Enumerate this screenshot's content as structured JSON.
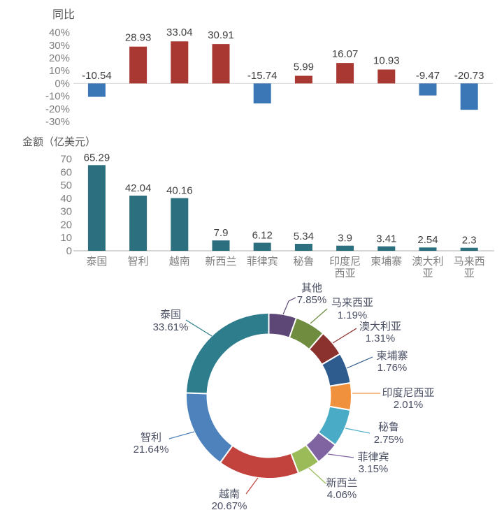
{
  "chart_data": [
    {
      "type": "bar",
      "title": "同比",
      "categories": [
        "泰国",
        "智利",
        "越南",
        "新西兰",
        "菲律宾",
        "秘鲁",
        "印度尼西亚",
        "柬埔寨",
        "澳大利亚",
        "马来西亚"
      ],
      "values": [
        -10.54,
        28.93,
        33.04,
        30.91,
        -15.74,
        5.99,
        16.07,
        10.93,
        -9.47,
        -20.73
      ],
      "value_labels": [
        "-10.54",
        "28.93",
        "33.04",
        "30.91",
        "-15.74",
        "5.99",
        "16.07",
        "10.93",
        "-9.47",
        "-20.73"
      ],
      "ylabel": "%",
      "ylim": [
        -30,
        40
      ],
      "ytick_labels": [
        "40%",
        "30%",
        "20%",
        "10%",
        "0%",
        "-10%",
        "-20%",
        "-30%"
      ],
      "ytick_values": [
        40,
        30,
        20,
        10,
        0,
        -10,
        -20,
        -30
      ],
      "grid": false,
      "x_axis_labels_shown": false,
      "bar_color_positive": "#a93832",
      "bar_color_negative": "#3b76b7",
      "zero_line_color": "#d9d9d9",
      "value_label_color": "#404040",
      "tick_color": "#7f7f7f",
      "title_color": "#595959"
    },
    {
      "type": "bar",
      "title": "金额（亿美元）",
      "categories": [
        "泰国",
        "智利",
        "越南",
        "新西兰",
        "菲律宾",
        "秘鲁",
        "印度尼西亚",
        "柬埔寨",
        "澳大利亚",
        "马来西亚"
      ],
      "category_tick_lines": [
        [
          "泰国"
        ],
        [
          "智利"
        ],
        [
          "越南"
        ],
        [
          "新西兰"
        ],
        [
          "菲律宾"
        ],
        [
          "秘鲁"
        ],
        [
          "印度尼",
          "西亚"
        ],
        [
          "柬埔寨"
        ],
        [
          "澳大利",
          "亚"
        ],
        [
          "马来西",
          "亚"
        ]
      ],
      "values": [
        65.29,
        42.04,
        40.16,
        7.9,
        6.12,
        5.34,
        3.9,
        3.41,
        2.54,
        2.3
      ],
      "value_labels": [
        "65.29",
        "42.04",
        "40.16",
        "7.9",
        "6.12",
        "5.34",
        "3.9",
        "3.41",
        "2.54",
        "2.3"
      ],
      "ylim": [
        0,
        70
      ],
      "ytick_labels": [
        "70",
        "60",
        "50",
        "40",
        "30",
        "20",
        "10",
        "0"
      ],
      "ytick_values": [
        70,
        60,
        50,
        40,
        30,
        20,
        10,
        0
      ],
      "grid": false,
      "bar_color": "#2c6f7e",
      "axis_line_color": "#bfbfbf",
      "value_label_color": "#404040",
      "tick_color": "#7f7f7f",
      "title_color": "#595959"
    },
    {
      "type": "donut",
      "title": "",
      "legend_position": "outside-labels-with-leader-lines",
      "order_note": "slices listed clockwise from 12 o'clock",
      "slices": [
        {
          "name": "其他",
          "value": 7.85,
          "pct_label": "7.85%",
          "color": "#5c4776"
        },
        {
          "name": "马来西亚",
          "value": 1.19,
          "pct_label": "1.19%",
          "color": "#6f8c3f"
        },
        {
          "name": "澳大利亚",
          "value": 1.31,
          "pct_label": "1.31%",
          "color": "#8b322f"
        },
        {
          "name": "柬埔寨",
          "value": 1.76,
          "pct_label": "1.76%",
          "color": "#2e5c8f"
        },
        {
          "name": "印度尼西亚",
          "value": 2.01,
          "pct_label": "2.01%",
          "color": "#f0923d"
        },
        {
          "name": "秘鲁",
          "value": 2.75,
          "pct_label": "2.75%",
          "color": "#4aabc7"
        },
        {
          "name": "菲律宾",
          "value": 3.15,
          "pct_label": "3.15%",
          "color": "#8064a2"
        },
        {
          "name": "新西兰",
          "value": 4.06,
          "pct_label": "4.06%",
          "color": "#9bbb59"
        },
        {
          "name": "越南",
          "value": 20.67,
          "pct_label": "20.67%",
          "color": "#c2423e"
        },
        {
          "name": "智利",
          "value": 21.64,
          "pct_label": "21.64%",
          "color": "#4e82bd"
        },
        {
          "name": "泰国",
          "value": 33.61,
          "pct_label": "33.61%",
          "color": "#2e7d8d"
        }
      ],
      "label_text_color": "#4a4f63"
    }
  ]
}
